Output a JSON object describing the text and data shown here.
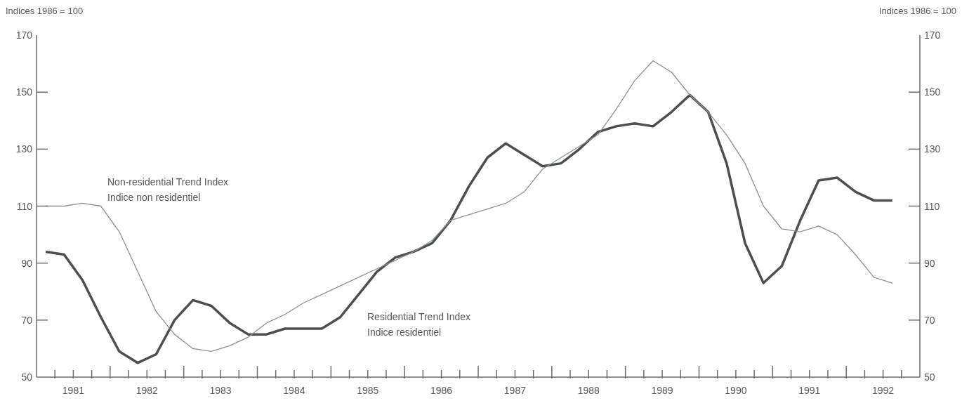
{
  "chart_data": {
    "type": "line",
    "ylabel": "Indices 1986 = 100",
    "y2label": "Indices 1986 = 100",
    "x": [
      1981.125,
      1981.375,
      1981.625,
      1981.875,
      1982.125,
      1982.375,
      1982.625,
      1982.875,
      1983.125,
      1983.375,
      1983.625,
      1983.875,
      1984.125,
      1984.375,
      1984.625,
      1984.875,
      1985.125,
      1985.375,
      1985.625,
      1985.875,
      1986.125,
      1986.375,
      1986.625,
      1986.875,
      1987.125,
      1987.375,
      1987.625,
      1987.875,
      1988.125,
      1988.375,
      1988.625,
      1988.875,
      1989.125,
      1989.375,
      1989.625,
      1989.875,
      1990.125,
      1990.375,
      1990.625,
      1990.875,
      1991.125,
      1991.375,
      1991.625,
      1991.875,
      1992.125,
      1992.375,
      1992.625
    ],
    "series": [
      {
        "name": "Residential Trend Index\nIndice residentiel",
        "color": "#4b504e",
        "values": [
          94,
          93,
          84,
          71,
          59,
          55,
          58,
          70,
          77,
          75,
          69,
          65,
          65,
          67,
          67,
          67,
          71,
          79,
          87,
          92,
          94,
          97,
          105,
          117,
          127,
          132,
          128,
          124,
          125,
          130,
          136,
          138,
          139,
          138,
          143,
          149,
          143,
          125,
          97,
          83,
          89,
          105,
          119,
          120,
          115,
          112,
          112
        ]
      },
      {
        "name": "Non-residential Trend Index\nIndice non residentiel",
        "color": "#8c918f",
        "values": [
          110,
          110,
          111,
          110,
          101,
          87,
          73,
          65,
          60,
          59,
          61,
          64,
          69,
          72,
          76,
          79,
          82,
          85,
          88,
          91,
          94,
          98,
          105,
          107,
          109,
          111,
          115,
          123,
          127,
          131,
          135,
          144,
          154,
          161,
          157,
          149,
          143,
          135,
          125,
          110,
          102,
          101,
          103,
          100,
          93,
          85,
          83
        ]
      }
    ],
    "ylim": [
      50,
      170
    ],
    "yticks": [
      50,
      70,
      90,
      110,
      130,
      150,
      170
    ],
    "y2lim": [
      50,
      170
    ],
    "y2ticks": [
      50,
      70,
      90,
      110,
      130,
      150,
      170
    ],
    "xlim": [
      1981,
      1993
    ],
    "xticks": [
      {
        "value": 1981.25,
        "label": null
      },
      {
        "value": 1981.5,
        "label": "1981"
      },
      {
        "value": 1981.75,
        "label": null
      },
      {
        "value": 1982,
        "label": null
      },
      {
        "value": 1982.25,
        "label": null
      },
      {
        "value": 1982.5,
        "label": "1982"
      },
      {
        "value": 1982.75,
        "label": null
      },
      {
        "value": 1983,
        "label": null
      },
      {
        "value": 1983.25,
        "label": null
      },
      {
        "value": 1983.5,
        "label": "1983"
      },
      {
        "value": 1983.75,
        "label": null
      },
      {
        "value": 1984,
        "label": null
      },
      {
        "value": 1984.25,
        "label": null
      },
      {
        "value": 1984.5,
        "label": "1984"
      },
      {
        "value": 1984.75,
        "label": null
      },
      {
        "value": 1985,
        "label": null
      },
      {
        "value": 1985.25,
        "label": null
      },
      {
        "value": 1985.5,
        "label": "1985"
      },
      {
        "value": 1985.75,
        "label": null
      },
      {
        "value": 1986,
        "label": null
      },
      {
        "value": 1986.25,
        "label": null
      },
      {
        "value": 1986.5,
        "label": "1986"
      },
      {
        "value": 1986.75,
        "label": null
      },
      {
        "value": 1987,
        "label": null
      },
      {
        "value": 1987.25,
        "label": null
      },
      {
        "value": 1987.5,
        "label": "1987"
      },
      {
        "value": 1987.75,
        "label": null
      },
      {
        "value": 1988,
        "label": null
      },
      {
        "value": 1988.25,
        "label": null
      },
      {
        "value": 1988.5,
        "label": "1988"
      },
      {
        "value": 1988.75,
        "label": null
      },
      {
        "value": 1989,
        "label": null
      },
      {
        "value": 1989.25,
        "label": null
      },
      {
        "value": 1989.5,
        "label": "1989"
      },
      {
        "value": 1989.75,
        "label": null
      },
      {
        "value": 1990,
        "label": null
      },
      {
        "value": 1990.25,
        "label": null
      },
      {
        "value": 1990.5,
        "label": "1990"
      },
      {
        "value": 1990.75,
        "label": null
      },
      {
        "value": 1991,
        "label": null
      },
      {
        "value": 1991.25,
        "label": null
      },
      {
        "value": 1991.5,
        "label": "1991"
      },
      {
        "value": 1991.75,
        "label": null
      },
      {
        "value": 1992,
        "label": null
      },
      {
        "value": 1992.25,
        "label": null
      },
      {
        "value": 1992.5,
        "label": "1992"
      },
      {
        "value": 1992.75,
        "label": null
      }
    ]
  }
}
